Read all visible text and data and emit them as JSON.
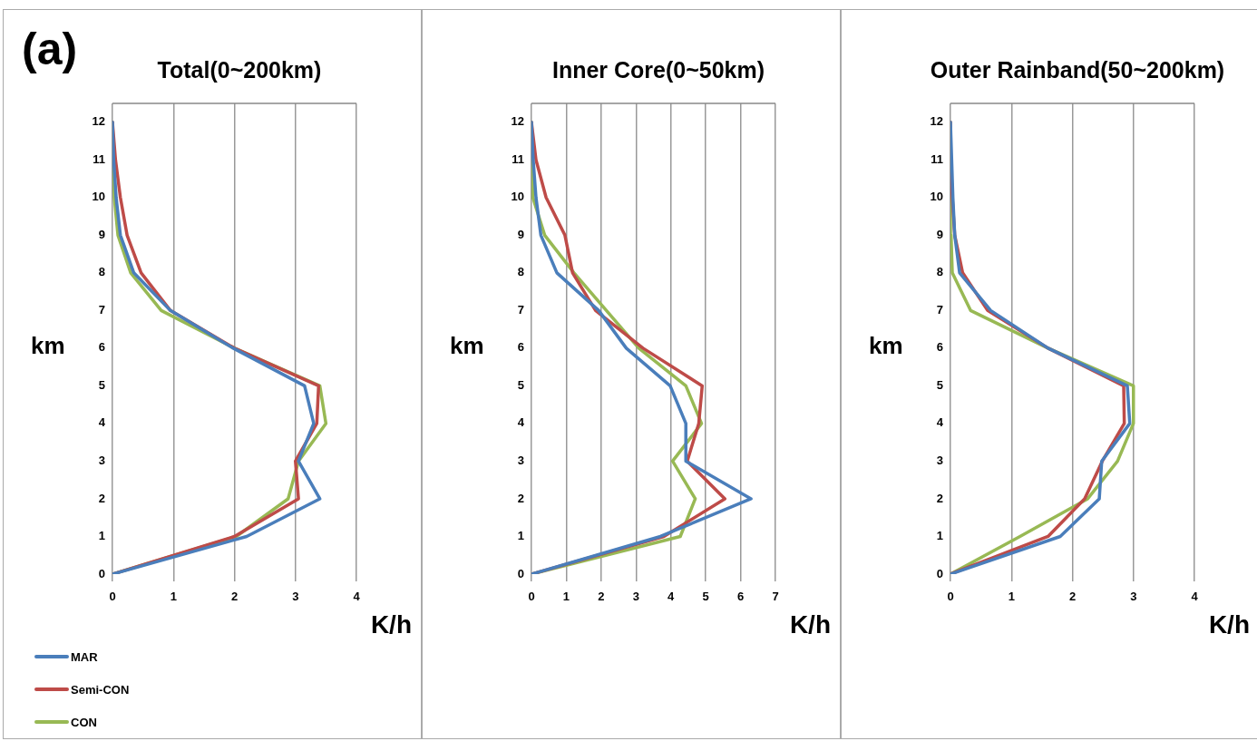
{
  "chart_data": [
    {
      "type": "line",
      "title": "Total(0~200km)",
      "xlabel": "K/h",
      "ylabel": "km",
      "annotations": [
        "(a)"
      ],
      "xlim": [
        0,
        4
      ],
      "xticks": [
        0,
        1,
        2,
        3,
        4
      ],
      "ylim": [
        0,
        12.5
      ],
      "yticks": [
        0,
        1,
        2,
        3,
        4,
        5,
        6,
        7,
        8,
        9,
        10,
        11,
        12
      ],
      "grid": "x",
      "legend": "bottom left",
      "marker": "none",
      "series": [
        {
          "name": "MAR",
          "color": "#4a7ebb",
          "x": [
            0,
            2.2,
            3.4,
            3.05,
            3.3,
            3.15,
            1.98,
            0.95,
            0.35,
            0.13,
            0.06,
            0.02,
            0
          ],
          "values": [
            0,
            1,
            2,
            3,
            4,
            5,
            6,
            7,
            8,
            9,
            10,
            11,
            12
          ]
        },
        {
          "name": "Semi-CON",
          "color": "#be4b48",
          "x": [
            0,
            2.0,
            3.05,
            3.0,
            3.35,
            3.38,
            2.0,
            0.95,
            0.47,
            0.24,
            0.13,
            0.05,
            0
          ],
          "values": [
            0,
            1,
            2,
            3,
            4,
            5,
            6,
            7,
            8,
            9,
            10,
            11,
            12
          ]
        },
        {
          "name": "CON",
          "color": "#98b954",
          "x": [
            0,
            2.03,
            2.88,
            3.05,
            3.5,
            3.4,
            2.0,
            0.8,
            0.3,
            0.09,
            0.03,
            0.01,
            0
          ],
          "values": [
            0,
            1,
            2,
            3,
            4,
            5,
            6,
            7,
            8,
            9,
            10,
            11,
            12
          ]
        }
      ]
    },
    {
      "type": "line",
      "title": "Inner Core(0~50km)",
      "xlabel": "K/h",
      "ylabel": "km",
      "xlim": [
        0,
        7
      ],
      "xticks": [
        0,
        1,
        2,
        3,
        4,
        5,
        6,
        7
      ],
      "ylim": [
        0,
        12.5
      ],
      "yticks": [
        0,
        1,
        2,
        3,
        4,
        5,
        6,
        7,
        8,
        9,
        10,
        11,
        12
      ],
      "grid": "x",
      "marker": "none",
      "series": [
        {
          "color": "#4a7ebb",
          "x": [
            0,
            3.7,
            6.3,
            4.43,
            4.43,
            3.98,
            2.72,
            1.93,
            0.73,
            0.27,
            0.13,
            0.05,
            0
          ],
          "values": [
            0,
            1,
            2,
            3,
            4,
            5,
            6,
            7,
            8,
            9,
            10,
            11,
            12
          ]
        },
        {
          "color": "#be4b48",
          "x": [
            0,
            3.8,
            5.55,
            4.47,
            4.8,
            4.9,
            3.2,
            1.84,
            1.18,
            0.96,
            0.42,
            0.13,
            0
          ],
          "values": [
            0,
            1,
            2,
            3,
            4,
            5,
            6,
            7,
            8,
            9,
            10,
            11,
            12
          ]
        },
        {
          "color": "#98b954",
          "x": [
            0,
            4.27,
            4.7,
            4.05,
            4.88,
            4.43,
            3.08,
            2.15,
            1.22,
            0.38,
            0.04,
            0.01,
            0
          ],
          "values": [
            0,
            1,
            2,
            3,
            4,
            5,
            6,
            7,
            8,
            9,
            10,
            11,
            12
          ]
        }
      ]
    },
    {
      "type": "line",
      "title": "Outer Rainband(50~200km)",
      "xlabel": "K/h",
      "ylabel": "km",
      "xlim": [
        0,
        4
      ],
      "xticks": [
        0,
        1,
        2,
        3,
        4
      ],
      "ylim": [
        0,
        12.5
      ],
      "yticks": [
        0,
        1,
        2,
        3,
        4,
        5,
        6,
        7,
        8,
        9,
        10,
        11,
        12
      ],
      "grid": "x",
      "marker": "none",
      "series": [
        {
          "color": "#4a7ebb",
          "x": [
            0,
            1.8,
            2.44,
            2.48,
            2.94,
            2.9,
            1.6,
            0.66,
            0.15,
            0.07,
            0.04,
            0.02,
            0
          ],
          "values": [
            0,
            1,
            2,
            3,
            4,
            5,
            6,
            7,
            8,
            9,
            10,
            11,
            12
          ]
        },
        {
          "color": "#be4b48",
          "x": [
            0,
            1.6,
            2.2,
            2.49,
            2.85,
            2.84,
            1.6,
            0.61,
            0.2,
            0.07,
            0.03,
            0,
            0
          ],
          "values": [
            0,
            1,
            2,
            3,
            4,
            5,
            6,
            7,
            8,
            9,
            10,
            11,
            12
          ]
        },
        {
          "color": "#98b954",
          "x": [
            0,
            1.14,
            2.25,
            2.74,
            3.0,
            3.0,
            1.6,
            0.33,
            0.03,
            0.01,
            0,
            0,
            0
          ],
          "values": [
            0,
            1,
            2,
            3,
            4,
            5,
            6,
            7,
            8,
            9,
            10,
            11,
            12
          ]
        }
      ]
    }
  ]
}
